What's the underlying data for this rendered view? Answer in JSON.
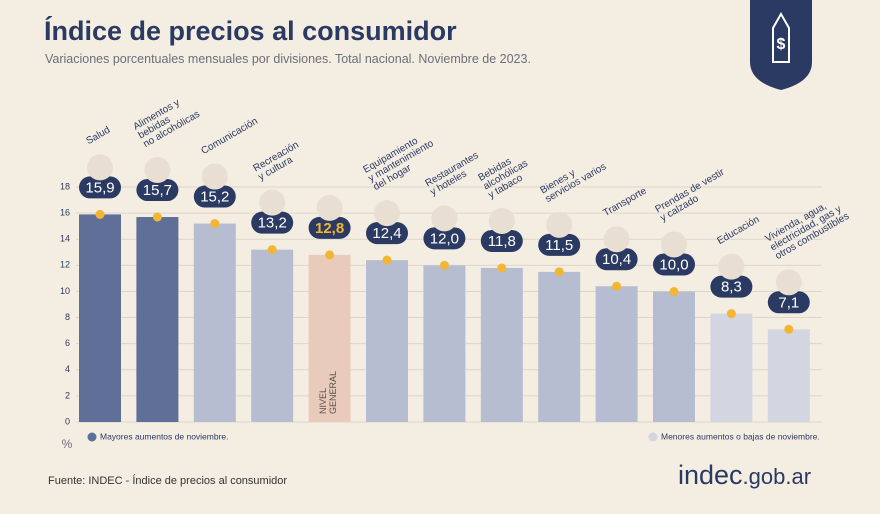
{
  "chart_data": {
    "type": "bar",
    "title": "Índice de precios al consumidor",
    "subtitle": "Variaciones porcentuales mensuales por divisiones. Total nacional. Noviembre de 2023.",
    "categories": [
      "Salud",
      "Alimentos y\nbebidas\nno alcohólicas",
      "Comunicación",
      "Recreación\ny cultura",
      "NIVEL\nGENERAL",
      "Equipamiento\ny mantenimiento\ndel hogar",
      "Restaurantes\ny hoteles",
      "Bebidas\nalcohólicas\ny tabaco",
      "Bienes y\nservicios varios",
      "Transporte",
      "Prendas de vestir\ny calzado",
      "Educación",
      "Vivienda, agua,\nelectricidad, gas y\notros combustibles"
    ],
    "values": [
      15.9,
      15.7,
      15.2,
      13.2,
      12.8,
      12.4,
      12.0,
      11.8,
      11.5,
      10.4,
      10.0,
      8.3,
      7.1
    ],
    "value_labels": [
      "15,9",
      "15,7",
      "15,2",
      "13,2",
      "12,8",
      "12,4",
      "12,0",
      "11,8",
      "11,5",
      "10,4",
      "10,0",
      "8,3",
      "7,1"
    ],
    "colors": [
      "#5f6f98",
      "#5f6f98",
      "#b7bdd1",
      "#b7bdd1",
      "#e9cbbb",
      "#b7bdd1",
      "#b7bdd1",
      "#b7bdd1",
      "#b7bdd1",
      "#b7bdd1",
      "#b7bdd1",
      "#d3d6e1",
      "#d3d6e1"
    ],
    "ylabel": "%",
    "ylim": [
      0,
      18
    ],
    "yticks": [
      0,
      2,
      4,
      6,
      8,
      10,
      12,
      14,
      16,
      18
    ],
    "grid": true,
    "legend": [
      {
        "label": "Mayores aumentos de noviembre.",
        "color": "#5f6f98"
      },
      {
        "label": "Menores aumentos o bajas de noviembre.",
        "color": "#d3d6e1"
      }
    ],
    "source": "Fuente: INDEC - Índice de precios al consumidor",
    "logo": {
      "main": "indec",
      "suffix": ".gob.ar"
    }
  }
}
